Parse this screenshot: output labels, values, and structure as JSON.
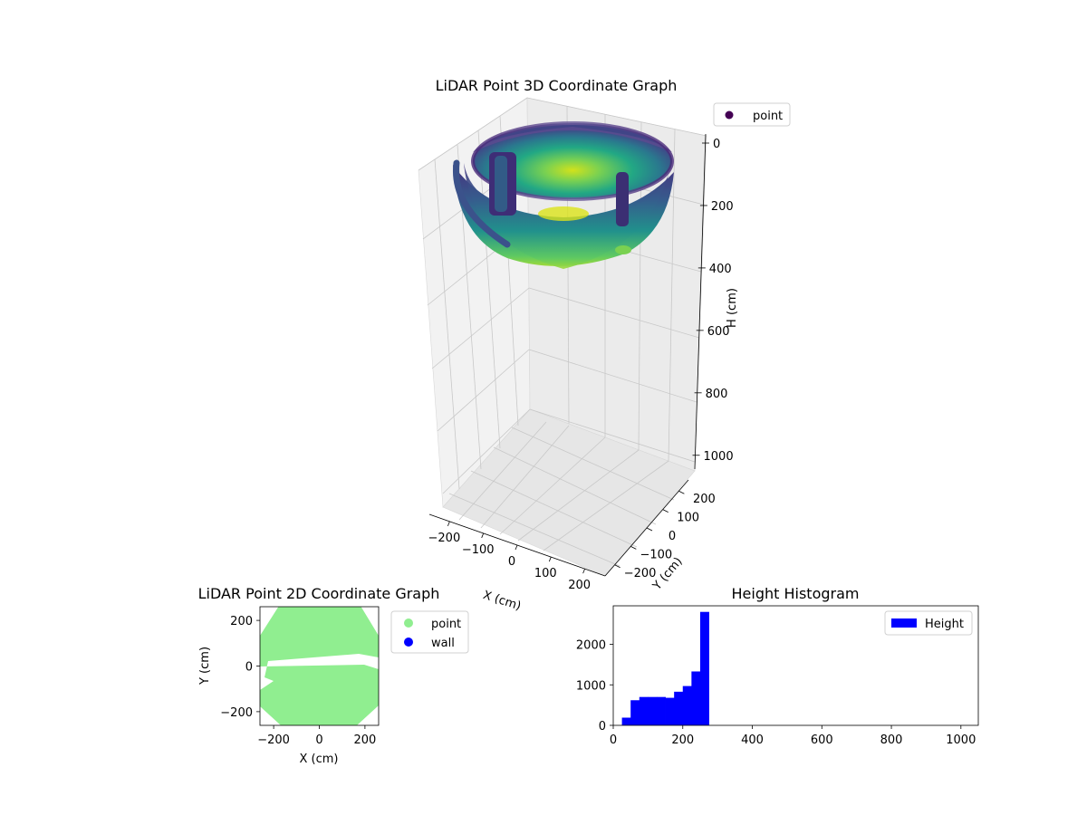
{
  "chart_data": [
    {
      "type": "scatter3d",
      "title": "LiDAR Point 3D Coordinate Graph",
      "xlabel": "X (cm)",
      "ylabel": "Y (cm)",
      "zlabel": "H (cm)",
      "x_ticks": [
        -200,
        -100,
        0,
        100,
        200
      ],
      "y_ticks": [
        -200,
        -100,
        0,
        100,
        200
      ],
      "z_ticks": [
        0,
        200,
        400,
        600,
        800,
        1000
      ],
      "xlim": [
        -260,
        260
      ],
      "ylim": [
        -260,
        260
      ],
      "zlim": [
        0,
        1050
      ],
      "z_inverted": true,
      "colormap": "viridis",
      "legend": [
        {
          "label": "point",
          "color": "#440154"
        }
      ],
      "legend_position": "upper-right",
      "shape": "hemispherical bowl of points, radius about 260 cm, depth about 280 cm, with two vertical pillar structures and a gap in the wall"
    },
    {
      "type": "scatter",
      "title": "LiDAR Point 2D Coordinate Graph",
      "xlabel": "X (cm)",
      "ylabel": "Y (cm)",
      "x_ticks": [
        -200,
        0,
        200
      ],
      "y_ticks": [
        -200,
        0,
        200
      ],
      "xlim": [
        -260,
        260
      ],
      "ylim": [
        -260,
        260
      ],
      "series": [
        {
          "name": "point",
          "color": "#90ee90"
        },
        {
          "name": "wall",
          "color": "#0000ff"
        }
      ],
      "legend_position": "outside-right"
    },
    {
      "type": "histogram",
      "title": "Height Histogram",
      "xlabel": "",
      "ylabel": "",
      "x_ticks": [
        0,
        200,
        400,
        600,
        800,
        1000
      ],
      "y_ticks": [
        0,
        1000,
        2000
      ],
      "xlim": [
        0,
        1050
      ],
      "ylim": [
        0,
        2950
      ],
      "bin_width": 25,
      "bin_edges": [
        25,
        50,
        75,
        100,
        125,
        150,
        175,
        200,
        225,
        250,
        275
      ],
      "values": [
        190,
        620,
        700,
        700,
        700,
        680,
        830,
        970,
        1330,
        2800
      ],
      "series_name": "Height",
      "color": "#0000ff",
      "legend_position": "top-right"
    }
  ]
}
